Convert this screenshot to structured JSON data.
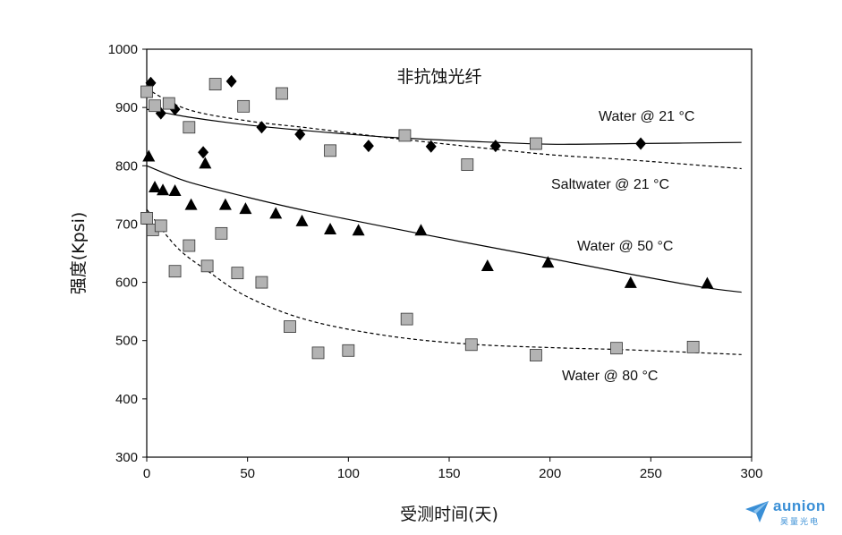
{
  "chart_data": {
    "type": "scatter",
    "title": "非抗蚀光纤",
    "xlabel": "受测时间(天)",
    "ylabel": "强度(Kpsi)",
    "xlim": [
      0,
      300
    ],
    "ylim": [
      300,
      1000
    ],
    "xticks": [
      0,
      50,
      100,
      150,
      200,
      250,
      300
    ],
    "yticks": [
      300,
      400,
      500,
      600,
      700,
      800,
      900,
      1000
    ],
    "grid": false,
    "series": [
      {
        "name": "Water @ 21 °C",
        "marker": "diamond",
        "color": "#000000",
        "curve_style": "solid",
        "points": [
          [
            2,
            942
          ],
          [
            7,
            890
          ],
          [
            14,
            897
          ],
          [
            28,
            823
          ],
          [
            42,
            945
          ],
          [
            57,
            866
          ],
          [
            76,
            854
          ],
          [
            110,
            834
          ],
          [
            141,
            833
          ],
          [
            173,
            834
          ],
          [
            245,
            838
          ]
        ],
        "fit": [
          [
            0,
            897
          ],
          [
            20,
            884
          ],
          [
            50,
            870
          ],
          [
            80,
            860
          ],
          [
            120,
            849
          ],
          [
            160,
            842
          ],
          [
            200,
            837
          ],
          [
            240,
            838
          ],
          [
            295,
            840
          ]
        ]
      },
      {
        "name": "Saltwater @ 21 °C",
        "marker": "square",
        "color": "#b3b3b3",
        "curve_style": "dashed",
        "points": [
          [
            0,
            927
          ],
          [
            4,
            903
          ],
          [
            11,
            907
          ],
          [
            21,
            866
          ],
          [
            34,
            940
          ],
          [
            48,
            902
          ],
          [
            67,
            924
          ],
          [
            91,
            826
          ],
          [
            128,
            852
          ],
          [
            159,
            802
          ],
          [
            193,
            838
          ]
        ],
        "fit": [
          [
            0,
            932
          ],
          [
            20,
            897
          ],
          [
            50,
            877
          ],
          [
            80,
            865
          ],
          [
            120,
            848
          ],
          [
            160,
            833
          ],
          [
            200,
            819
          ],
          [
            240,
            810
          ],
          [
            295,
            795
          ]
        ]
      },
      {
        "name": "Water @ 50 °C",
        "marker": "triangle",
        "color": "#000000",
        "curve_style": "solid",
        "points": [
          [
            1,
            815
          ],
          [
            4,
            762
          ],
          [
            8,
            757
          ],
          [
            14,
            756
          ],
          [
            22,
            732
          ],
          [
            29,
            803
          ],
          [
            39,
            732
          ],
          [
            49,
            725
          ],
          [
            64,
            717
          ],
          [
            77,
            704
          ],
          [
            91,
            690
          ],
          [
            105,
            688
          ],
          [
            136,
            688
          ],
          [
            169,
            627
          ],
          [
            199,
            633
          ],
          [
            240,
            598
          ],
          [
            278,
            597
          ]
        ],
        "fit": [
          [
            0,
            800
          ],
          [
            20,
            773
          ],
          [
            50,
            746
          ],
          [
            80,
            722
          ],
          [
            120,
            694
          ],
          [
            160,
            667
          ],
          [
            200,
            641
          ],
          [
            240,
            614
          ],
          [
            275,
            592
          ],
          [
            295,
            583
          ]
        ]
      },
      {
        "name": "Water @ 80 °C",
        "marker": "square",
        "color": "#b3b3b3",
        "curve_style": "dashed",
        "points": [
          [
            0,
            710
          ],
          [
            3,
            690
          ],
          [
            7,
            697
          ],
          [
            14,
            619
          ],
          [
            21,
            663
          ],
          [
            30,
            628
          ],
          [
            37,
            684
          ],
          [
            45,
            616
          ],
          [
            57,
            600
          ],
          [
            71,
            524
          ],
          [
            85,
            479
          ],
          [
            100,
            483
          ],
          [
            129,
            537
          ],
          [
            161,
            493
          ],
          [
            193,
            475
          ],
          [
            233,
            487
          ],
          [
            271,
            489
          ]
        ],
        "fit": [
          [
            0,
            725
          ],
          [
            15,
            660
          ],
          [
            30,
            620
          ],
          [
            50,
            575
          ],
          [
            80,
            535
          ],
          [
            120,
            508
          ],
          [
            160,
            494
          ],
          [
            200,
            488
          ],
          [
            240,
            484
          ],
          [
            295,
            476
          ]
        ]
      }
    ]
  },
  "brand": {
    "name": "aunion",
    "sub": "昊量光电",
    "color": "#3a8fd6"
  }
}
